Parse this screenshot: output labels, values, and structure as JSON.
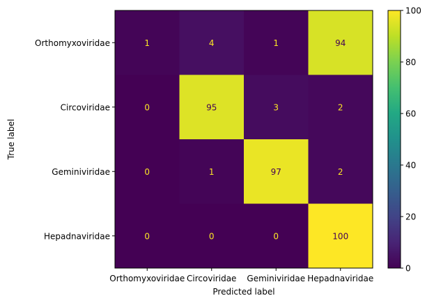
{
  "chart_data": {
    "type": "heatmap",
    "title": "",
    "xlabel": "Predicted label",
    "ylabel": "True label",
    "x_categories": [
      "Orthomyxoviridae",
      "Circoviridae",
      "Geminiviridae",
      "Hepadnaviridae"
    ],
    "y_categories": [
      "Orthomyxoviridae",
      "Circoviridae",
      "Geminiviridae",
      "Hepadnaviridae"
    ],
    "values": [
      [
        1,
        4,
        1,
        94
      ],
      [
        0,
        95,
        3,
        2
      ],
      [
        0,
        1,
        97,
        2
      ],
      [
        0,
        0,
        0,
        100
      ]
    ],
    "colorbar": {
      "colormap": "viridis",
      "range": [
        0,
        100
      ],
      "ticks": [
        0,
        20,
        40,
        60,
        80,
        100
      ],
      "tick_labels": [
        "0",
        "20",
        "40",
        "60",
        "80",
        "100"
      ]
    },
    "colors": {
      "text_on_dark": "#fde725",
      "text_on_light": "#440154"
    }
  }
}
